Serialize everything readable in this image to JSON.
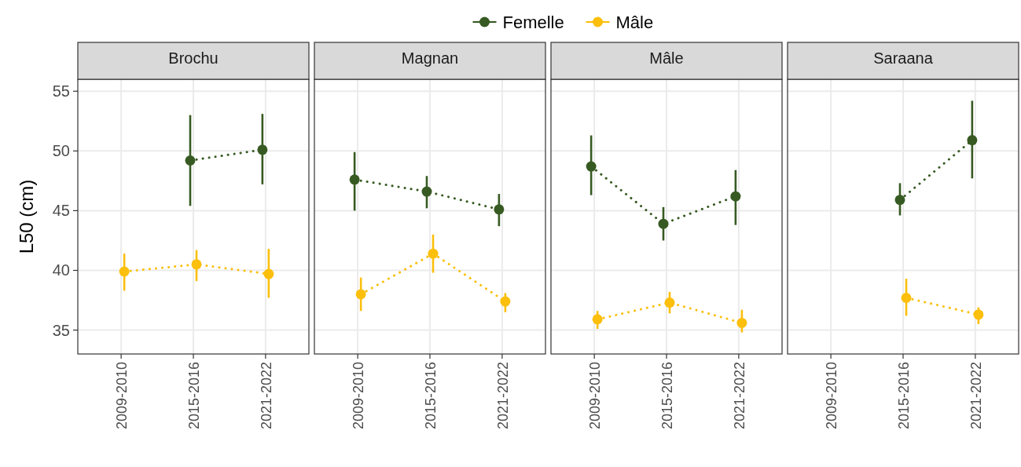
{
  "chart_data": [
    {
      "type": "line",
      "title": "Brochu",
      "ylabel": "L50 (cm)",
      "categories": [
        "2009-2010",
        "2015-2016",
        "2021-2022"
      ],
      "ylim": [
        33,
        56
      ],
      "yticks": [
        35,
        40,
        45,
        50,
        55
      ],
      "grid": true,
      "legend": "top",
      "marker": "circle",
      "line_style": "dotted",
      "series": [
        {
          "name": "Femelle",
          "color": "#375a22",
          "values": [
            null,
            49.2,
            50.1
          ],
          "errors": [
            null,
            [
              45.4,
              53.0
            ],
            [
              47.2,
              53.1
            ]
          ]
        },
        {
          "name": "Mâle",
          "color": "#fbbf0c",
          "values": [
            39.9,
            40.5,
            39.7
          ],
          "errors": [
            [
              38.3,
              41.4
            ],
            [
              39.1,
              41.7
            ],
            [
              37.7,
              41.8
            ]
          ]
        }
      ]
    },
    {
      "type": "line",
      "title": "Magnan",
      "categories": [
        "2009-2010",
        "2015-2016",
        "2021-2022"
      ],
      "ylim": [
        33,
        56
      ],
      "yticks": [
        35,
        40,
        45,
        50,
        55
      ],
      "grid": true,
      "tick_labels": "x",
      "marker": "circle",
      "line_style": "dotted",
      "series": [
        {
          "color": "#375a22",
          "values": [
            47.6,
            46.6,
            45.1
          ],
          "errors": [
            [
              45.0,
              49.9
            ],
            [
              45.2,
              47.9
            ],
            [
              43.7,
              46.4
            ]
          ]
        },
        {
          "color": "#fbbf0c",
          "values": [
            38.0,
            41.4,
            37.4
          ],
          "errors": [
            [
              36.6,
              39.4
            ],
            [
              39.8,
              43.0
            ],
            [
              36.5,
              38.1
            ]
          ]
        }
      ]
    },
    {
      "type": "line",
      "title": "Mâle",
      "categories": [
        "2009-2010",
        "2015-2016",
        "2021-2022"
      ],
      "ylim": [
        33,
        56
      ],
      "yticks": [
        35,
        40,
        45,
        50,
        55
      ],
      "grid": true,
      "tick_labels": "x",
      "marker": "circle",
      "line_style": "dotted",
      "series": [
        {
          "color": "#375a22",
          "values": [
            48.7,
            43.9,
            46.2
          ],
          "errors": [
            [
              46.3,
              51.3
            ],
            [
              42.5,
              45.3
            ],
            [
              43.8,
              48.4
            ]
          ]
        },
        {
          "color": "#fbbf0c",
          "values": [
            35.9,
            37.3,
            35.6
          ],
          "errors": [
            [
              35.1,
              36.6
            ],
            [
              36.4,
              38.2
            ],
            [
              34.8,
              36.7
            ]
          ]
        }
      ]
    },
    {
      "type": "line",
      "title": "Saraana",
      "categories": [
        "2009-2010",
        "2015-2016",
        "2021-2022"
      ],
      "ylim": [
        33,
        56
      ],
      "yticks": [
        35,
        40,
        45,
        50,
        55
      ],
      "grid": true,
      "tick_labels": "x",
      "marker": "circle",
      "line_style": "dotted",
      "series": [
        {
          "color": "#375a22",
          "values": [
            null,
            45.9,
            50.9
          ],
          "errors": [
            null,
            [
              44.6,
              47.3
            ],
            [
              47.7,
              54.2
            ]
          ]
        },
        {
          "color": "#fbbf0c",
          "values": [
            null,
            37.7,
            36.3
          ],
          "errors": [
            null,
            [
              36.2,
              39.3
            ],
            [
              35.5,
              36.9
            ]
          ]
        }
      ]
    }
  ]
}
